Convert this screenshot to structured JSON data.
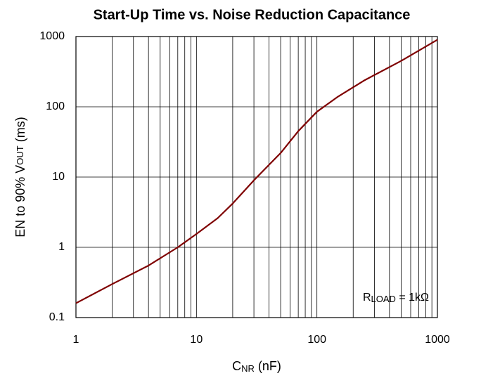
{
  "chart_data": {
    "type": "line",
    "title": "Start-Up Time vs. Noise Reduction Capacitance",
    "x_label": [
      "C",
      "NR",
      " (nF)"
    ],
    "y_label": [
      "EN to 90% V",
      "OUT",
      " (ms)"
    ],
    "annotation": [
      "R",
      "LOAD",
      " = 1kΩ"
    ],
    "x": [
      1,
      2,
      4,
      7,
      10,
      15,
      20,
      30,
      50,
      70,
      100,
      150,
      250,
      500,
      1000
    ],
    "series": [
      {
        "name": "Start-up time",
        "color": "#7f0000",
        "values": [
          0.16,
          0.3,
          0.55,
          1.0,
          1.55,
          2.6,
          4.2,
          9,
          22,
          45,
          85,
          140,
          240,
          450,
          900
        ]
      }
    ],
    "xscale": "log",
    "yscale": "log",
    "xlim": [
      1,
      1000
    ],
    "ylim": [
      0.1,
      1000
    ],
    "xticks": [
      1,
      10,
      100,
      1000
    ],
    "xminorticks": [
      2,
      3,
      4,
      5,
      6,
      7,
      8,
      9,
      20,
      30,
      40,
      50,
      60,
      70,
      80,
      90,
      200,
      300,
      400,
      500,
      600,
      700,
      800,
      900
    ],
    "yticks": [
      0.1,
      1,
      10,
      100,
      1000
    ],
    "grid": true
  }
}
